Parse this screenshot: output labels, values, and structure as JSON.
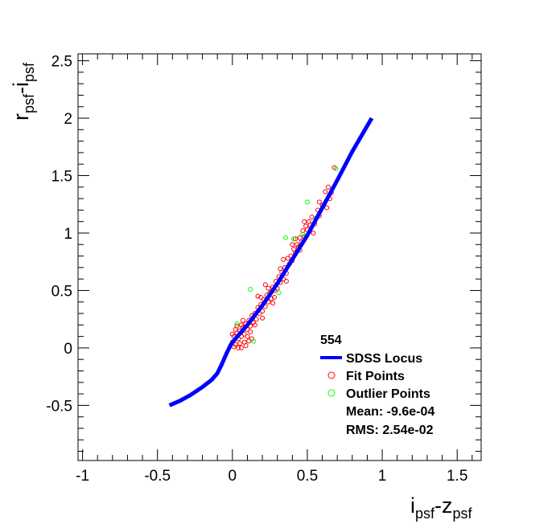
{
  "chart_data": {
    "type": "scatter",
    "title": "",
    "xlabel": {
      "main1": "i",
      "sub1": "psf",
      "dash": "-",
      "main2": "z",
      "sub2": "psf"
    },
    "ylabel": {
      "main1": "r",
      "sub1": "psf",
      "dash": "-",
      "main2": "i",
      "sub2": "psf"
    },
    "xlim": [
      -1.03,
      1.66
    ],
    "ylim": [
      -0.98,
      2.56
    ],
    "xticks": [
      -1,
      -0.5,
      0,
      0.5,
      1,
      1.5
    ],
    "xtick_labels": [
      "-1",
      "-0.5",
      "0",
      "0.5",
      "1",
      "1.5"
    ],
    "yticks": [
      -0.5,
      0,
      0.5,
      1,
      1.5,
      2,
      2.5
    ],
    "ytick_labels": [
      "-0.5",
      "0",
      "0.5",
      "1",
      "1.5",
      "2",
      "2.5"
    ],
    "grid": false,
    "legend": {
      "placement": "bottom-right",
      "header": "554",
      "entries": [
        "SDSS Locus",
        "Fit Points",
        "Outlier Points"
      ],
      "mean": "Mean: -9.6e-04",
      "rms": "RMS: 2.54e-02"
    },
    "colors": {
      "locus": "#0000ff",
      "fit": "#ff0000",
      "outlier": "#00ff00"
    },
    "series": [
      {
        "name": "SDSS Locus",
        "type": "line",
        "points": [
          [
            -0.42,
            -0.5
          ],
          [
            -0.35,
            -0.46
          ],
          [
            -0.28,
            -0.41
          ],
          [
            -0.2,
            -0.34
          ],
          [
            -0.14,
            -0.28
          ],
          [
            -0.1,
            -0.22
          ],
          [
            -0.07,
            -0.14
          ],
          [
            -0.04,
            -0.05
          ],
          [
            -0.01,
            0.03
          ],
          [
            0.02,
            0.08
          ],
          [
            0.1,
            0.2
          ],
          [
            0.2,
            0.37
          ],
          [
            0.3,
            0.56
          ],
          [
            0.4,
            0.77
          ],
          [
            0.5,
            0.98
          ],
          [
            0.6,
            1.22
          ],
          [
            0.7,
            1.46
          ],
          [
            0.8,
            1.71
          ],
          [
            0.93,
            2.0
          ]
        ]
      },
      {
        "name": "Fit Points",
        "type": "scatter",
        "points": [
          [
            0.0,
            0.05
          ],
          [
            0.01,
            0.1
          ],
          [
            0.02,
            0.03
          ],
          [
            0.03,
            0.13
          ],
          [
            0.04,
            0.08
          ],
          [
            0.05,
            0.15
          ],
          [
            0.06,
            0.1
          ],
          [
            0.07,
            0.18
          ],
          [
            0.08,
            0.12
          ],
          [
            0.02,
            0.16
          ],
          [
            0.0,
            0.12
          ],
          [
            0.05,
            0.04
          ],
          [
            0.09,
            0.21
          ],
          [
            0.1,
            0.16
          ],
          [
            0.11,
            0.24
          ],
          [
            0.12,
            0.19
          ],
          [
            0.13,
            0.28
          ],
          [
            0.14,
            0.22
          ],
          [
            0.15,
            0.3
          ],
          [
            0.04,
            0.0
          ],
          [
            0.06,
            -0.0
          ],
          [
            0.08,
            0.05
          ],
          [
            0.03,
            0.19
          ],
          [
            0.07,
            0.24
          ],
          [
            0.1,
            0.1
          ],
          [
            0.16,
            0.25
          ],
          [
            0.17,
            0.35
          ],
          [
            0.18,
            0.3
          ],
          [
            0.19,
            0.38
          ],
          [
            0.2,
            0.32
          ],
          [
            0.21,
            0.42
          ],
          [
            0.22,
            0.36
          ],
          [
            0.23,
            0.46
          ],
          [
            0.24,
            0.4
          ],
          [
            0.25,
            0.48
          ],
          [
            0.26,
            0.43
          ],
          [
            0.27,
            0.53
          ],
          [
            0.28,
            0.5
          ],
          [
            0.29,
            0.58
          ],
          [
            0.3,
            0.52
          ],
          [
            0.31,
            0.62
          ],
          [
            0.32,
            0.57
          ],
          [
            0.33,
            0.66
          ],
          [
            0.34,
            0.6
          ],
          [
            0.35,
            0.7
          ],
          [
            0.36,
            0.65
          ],
          [
            0.37,
            0.78
          ],
          [
            0.38,
            0.73
          ],
          [
            0.39,
            0.8
          ],
          [
            0.4,
            0.76
          ],
          [
            0.41,
            0.86
          ],
          [
            0.42,
            0.83
          ],
          [
            0.43,
            0.9
          ],
          [
            0.44,
            0.88
          ],
          [
            0.45,
            0.96
          ],
          [
            0.46,
            0.92
          ],
          [
            0.47,
            1.02
          ],
          [
            0.48,
            0.97
          ],
          [
            0.49,
            1.06
          ],
          [
            0.5,
            1.03
          ],
          [
            0.51,
            1.1
          ],
          [
            0.52,
            1.07
          ],
          [
            0.53,
            1.14
          ],
          [
            0.55,
            1.08
          ],
          [
            0.57,
            1.2
          ],
          [
            0.58,
            1.15
          ],
          [
            0.6,
            1.24
          ],
          [
            0.62,
            1.36
          ],
          [
            0.64,
            1.4
          ],
          [
            0.66,
            1.35
          ],
          [
            0.68,
            1.57
          ],
          [
            0.65,
            1.3
          ],
          [
            0.54,
            1.0
          ],
          [
            0.45,
            0.85
          ],
          [
            0.36,
            0.58
          ],
          [
            0.28,
            0.44
          ],
          [
            0.2,
            0.26
          ],
          [
            0.12,
            0.14
          ],
          [
            0.24,
            0.52
          ],
          [
            0.32,
            0.69
          ],
          [
            0.4,
            0.9
          ],
          [
            0.48,
            1.1
          ],
          [
            0.17,
            0.45
          ],
          [
            0.22,
            0.55
          ],
          [
            0.13,
            0.08
          ],
          [
            0.09,
            0.02
          ],
          [
            0.15,
            0.2
          ],
          [
            0.19,
            0.44
          ],
          [
            0.27,
            0.39
          ],
          [
            0.34,
            0.77
          ],
          [
            0.42,
            0.95
          ],
          [
            0.58,
            1.27
          ],
          [
            0.63,
            1.22
          ],
          [
            0.01,
            0.01
          ],
          [
            0.06,
            0.2
          ],
          [
            0.11,
            0.06
          ]
        ]
      },
      {
        "name": "Outlier Points",
        "type": "scatter",
        "points": [
          [
            0.12,
            0.51
          ],
          [
            0.14,
            0.06
          ],
          [
            0.31,
            0.48
          ],
          [
            0.5,
            1.27
          ],
          [
            0.56,
            1.13
          ],
          [
            0.355,
            0.96
          ],
          [
            0.03,
            0.21
          ],
          [
            0.69,
            1.56
          ],
          [
            0.47,
            0.99
          ],
          [
            0.41,
            0.95
          ]
        ]
      }
    ]
  }
}
